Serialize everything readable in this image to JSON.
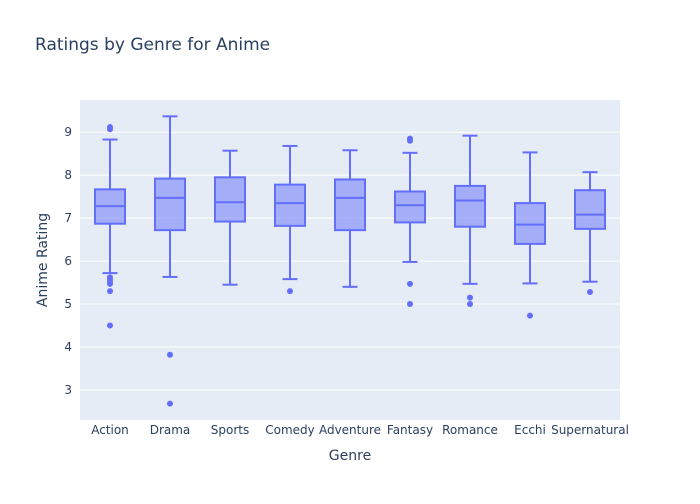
{
  "colors": {
    "plot_bg": "#E5ECF6",
    "grid": "#ffffff",
    "box_line": "#636EFA",
    "box_fill": "rgba(99,110,250,0.5)",
    "text": "#2a3f5f"
  },
  "chart_data": {
    "type": "box",
    "title": "Ratings by Genre for Anime",
    "xlabel": "Genre",
    "ylabel": "Anime Rating",
    "ylim": [
      2.3,
      9.75
    ],
    "yticks": [
      3,
      4,
      5,
      6,
      7,
      8,
      9
    ],
    "grid": true,
    "legend": "none",
    "categories": [
      "Action",
      "Drama",
      "Sports",
      "Comedy",
      "Adventure",
      "Fantasy",
      "Romance",
      "Ecchi",
      "Supernatural"
    ],
    "boxes": [
      {
        "category": "Action",
        "min": 5.72,
        "q1": 6.87,
        "median": 7.28,
        "q3": 7.67,
        "max": 8.83,
        "outliers": [
          9.12,
          9.07,
          5.62,
          5.57,
          5.52,
          5.47,
          5.3,
          4.5
        ]
      },
      {
        "category": "Drama",
        "min": 5.63,
        "q1": 6.72,
        "median": 7.47,
        "q3": 7.92,
        "max": 9.37,
        "outliers": [
          3.82,
          2.68
        ]
      },
      {
        "category": "Sports",
        "min": 5.45,
        "q1": 6.92,
        "median": 7.37,
        "q3": 7.95,
        "max": 8.57,
        "outliers": []
      },
      {
        "category": "Comedy",
        "min": 5.58,
        "q1": 6.82,
        "median": 7.35,
        "q3": 7.78,
        "max": 8.68,
        "outliers": [
          5.3
        ]
      },
      {
        "category": "Adventure",
        "min": 5.4,
        "q1": 6.72,
        "median": 7.47,
        "q3": 7.9,
        "max": 8.58,
        "outliers": []
      },
      {
        "category": "Fantasy",
        "min": 5.98,
        "q1": 6.9,
        "median": 7.3,
        "q3": 7.62,
        "max": 8.52,
        "outliers": [
          8.85,
          8.8,
          5.47,
          5.0
        ]
      },
      {
        "category": "Romance",
        "min": 5.47,
        "q1": 6.8,
        "median": 7.41,
        "q3": 7.75,
        "max": 8.92,
        "outliers": [
          5.15,
          5.0
        ]
      },
      {
        "category": "Ecchi",
        "min": 5.48,
        "q1": 6.4,
        "median": 6.85,
        "q3": 7.35,
        "max": 8.53,
        "outliers": [
          4.73
        ]
      },
      {
        "category": "Supernatural",
        "min": 5.52,
        "q1": 6.75,
        "median": 7.08,
        "q3": 7.65,
        "max": 8.07,
        "outliers": [
          5.28
        ]
      }
    ]
  }
}
